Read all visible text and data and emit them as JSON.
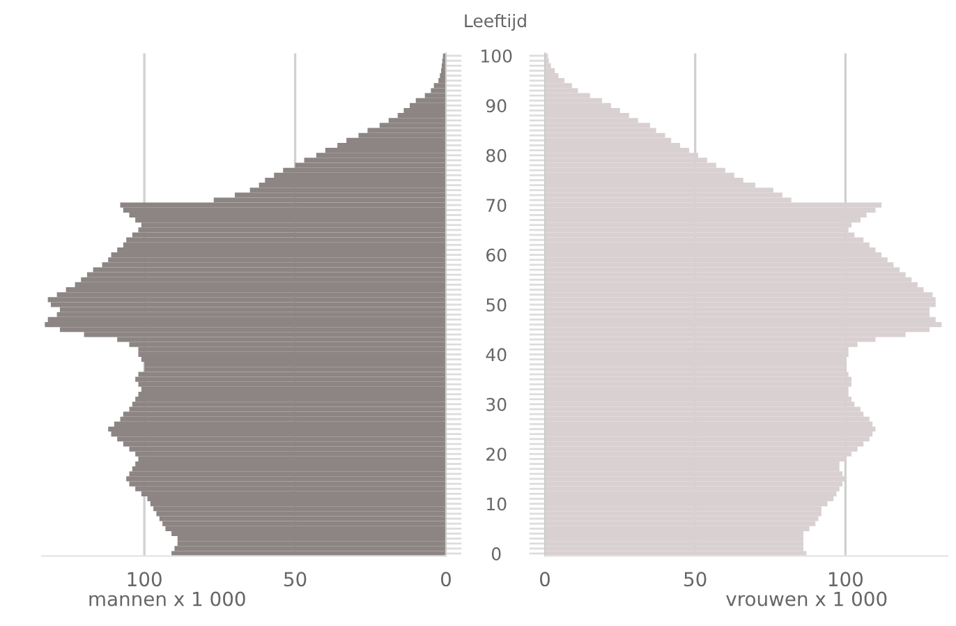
{
  "chart_data": [
    {
      "type": "bar",
      "orientation": "horizontal",
      "ylabel": "Leeftijd",
      "xlabel": "mannen x 1 000",
      "categories": [
        "100",
        null,
        null,
        null,
        null,
        null,
        null,
        null,
        null,
        null,
        "90",
        null,
        null,
        null,
        null,
        null,
        null,
        null,
        null,
        null,
        "80",
        null,
        null,
        null,
        null,
        null,
        null,
        null,
        null,
        null,
        "70",
        null,
        null,
        null,
        null,
        null,
        null,
        null,
        null,
        null,
        "60",
        null,
        null,
        null,
        null,
        null,
        null,
        null,
        null,
        null,
        "50",
        null,
        null,
        null,
        null,
        null,
        null,
        null,
        null,
        null,
        "40",
        null,
        null,
        null,
        null,
        null,
        null,
        null,
        null,
        null,
        "30",
        null,
        null,
        null,
        null,
        null,
        null,
        null,
        null,
        null,
        "20",
        null,
        null,
        null,
        null,
        null,
        null,
        null,
        null,
        null,
        "10",
        null,
        null,
        null,
        null,
        null,
        null,
        null,
        null,
        null,
        "0"
      ],
      "series": [
        {
          "color": "#8c8583",
          "values": [
            1,
            1.2,
            1.4,
            1.6,
            2,
            2.5,
            4,
            5,
            7,
            10,
            12,
            14,
            16,
            19,
            22,
            26,
            29,
            33,
            36,
            40,
            43,
            47,
            50,
            54,
            57,
            60,
            62,
            65,
            70,
            77,
            108,
            107,
            105,
            103,
            101,
            102,
            104,
            106,
            107,
            109,
            111,
            112,
            114,
            117,
            119,
            121,
            123,
            126,
            129,
            132,
            131,
            128,
            129,
            132,
            133,
            128,
            120,
            109,
            105,
            102,
            102,
            101,
            100,
            100,
            102,
            103,
            102,
            101,
            102,
            103,
            104,
            105,
            107,
            108,
            110,
            112,
            111,
            109,
            107,
            105,
            103,
            102,
            103,
            104,
            105,
            106,
            105,
            103,
            101,
            99,
            98,
            97,
            96,
            95,
            94,
            93,
            91,
            89,
            89,
            90,
            91
          ]
        }
      ],
      "xlim": [
        134,
        0
      ],
      "xticks": [
        100,
        50,
        0
      ],
      "grid": "x"
    },
    {
      "type": "bar",
      "orientation": "horizontal",
      "xlabel": "vrouwen x 1 000",
      "tick_labels": "x",
      "categories": [
        "100",
        null,
        null,
        null,
        null,
        null,
        null,
        null,
        null,
        null,
        "90",
        null,
        null,
        null,
        null,
        null,
        null,
        null,
        null,
        null,
        "80",
        null,
        null,
        null,
        null,
        null,
        null,
        null,
        null,
        null,
        "70",
        null,
        null,
        null,
        null,
        null,
        null,
        null,
        null,
        null,
        "60",
        null,
        null,
        null,
        null,
        null,
        null,
        null,
        null,
        null,
        "50",
        null,
        null,
        null,
        null,
        null,
        null,
        null,
        null,
        null,
        "40",
        null,
        null,
        null,
        null,
        null,
        null,
        null,
        null,
        null,
        "30",
        null,
        null,
        null,
        null,
        null,
        null,
        null,
        null,
        null,
        "20",
        null,
        null,
        null,
        null,
        null,
        null,
        null,
        null,
        null,
        "10",
        null,
        null,
        null,
        null,
        null,
        null,
        null,
        null,
        null,
        "0"
      ],
      "series": [
        {
          "color": "#d9d0d1",
          "values": [
            1,
            1.3,
            2,
            3.3,
            4.5,
            6.5,
            9,
            11,
            15,
            19,
            22,
            25,
            28,
            31,
            35,
            37,
            40,
            42,
            45,
            48,
            51,
            54,
            57,
            60,
            63,
            66,
            70,
            76,
            79,
            82,
            112,
            110,
            107,
            105,
            102,
            101,
            103,
            106,
            108,
            110,
            112,
            114,
            116,
            118,
            120,
            122,
            124,
            126,
            129,
            130,
            130,
            128,
            128,
            130,
            132,
            128,
            120,
            110,
            104,
            101,
            101,
            100,
            100,
            100,
            101,
            102,
            102,
            101,
            101,
            102,
            103,
            105,
            106,
            108,
            109,
            110,
            109,
            108,
            106,
            104,
            102,
            100,
            98,
            98,
            99,
            100,
            99,
            98,
            97,
            96,
            94,
            92,
            92,
            91,
            90,
            88,
            86,
            86,
            86,
            86,
            87
          ]
        }
      ],
      "xlim": [
        0,
        134
      ],
      "xticks": [
        0,
        50,
        100
      ],
      "grid": "x"
    }
  ]
}
